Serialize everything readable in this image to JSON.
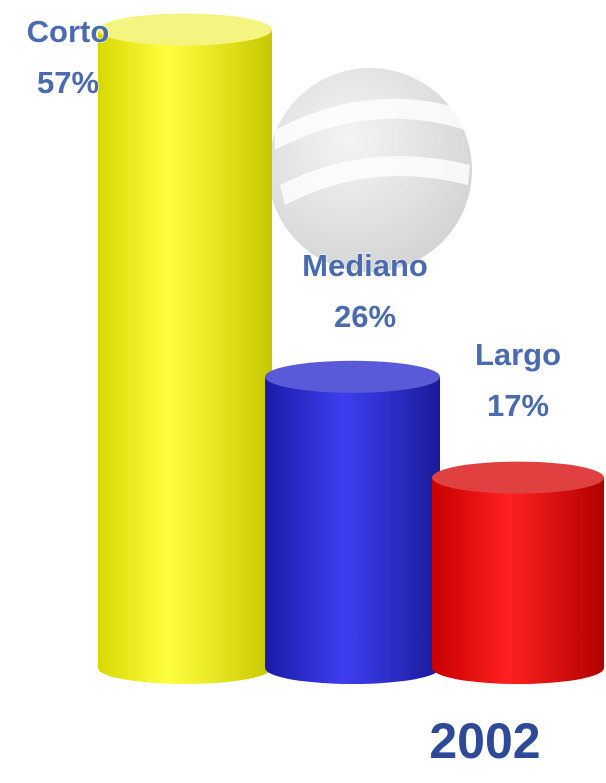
{
  "chart_data": {
    "type": "cylinder-bar",
    "subtitle": "2002",
    "categories": [
      "Corto",
      "Mediano",
      "Largo"
    ],
    "values": [
      57,
      26,
      17
    ],
    "value_labels": [
      "57%",
      "26%",
      "17%"
    ],
    "colors": [
      "#ffff00",
      "#2a2ad0",
      "#ee0000"
    ]
  }
}
